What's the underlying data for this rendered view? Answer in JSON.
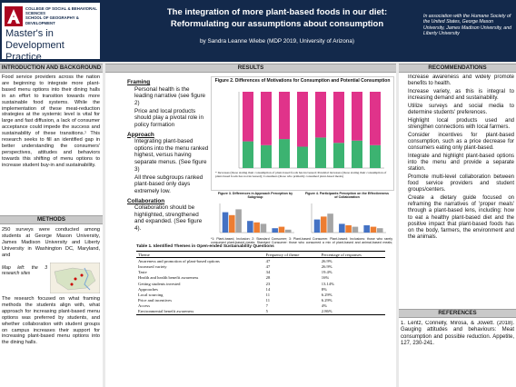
{
  "header": {
    "college": "COLLEGE OF SOCIAL & BEHAVIORAL SCIENCES",
    "school": "SCHOOL OF GEOGRAPHY & DEVELOPMENT",
    "program": "Master's in Development Practice",
    "title_1": "The integration of more plant-based foods in our diet:",
    "title_2": "Reformulating our assumptions about consumption",
    "author": "by Sandra Leanne Wiebe (MDP 2019, University of Arizona)",
    "affiliation": "In association with the Humane Society of the United States, George Mason University, James Madison University, and Liberty University"
  },
  "intro": {
    "heading": "INTRODUCTION AND BACKGROUND",
    "text": "Food service providers across the nation are beginning to integrate more plant-based menu options into their dining halls in an effort to transition towards more sustainable food systems. While the implementation of these meat-reduction strategies at the systemic level is vital for large and fast diffusion, a lack of consumer acceptance could impede the success and sustainability of these transitions.¹ This research seeks to fill an identified gap in better understanding the consumers' perspectives, attitudes and behaviors towards this shifting of menu options to increase student buy-in and sustainability."
  },
  "methods": {
    "heading": "METHODS",
    "text_1": "250 surveys were conducted among students at George Mason University, James Madison University and Liberty University in Washington DC, Maryland, and",
    "caption": "Map left: the 3 research sites",
    "text_2": "The research focused on what framing methods the students align with, what approach for increasing plant-based menu options was preferred by students, and whether collaboration with student groups on campus increases their support for increasing plant-based menu options into the dining halls."
  },
  "results": {
    "heading": "RESULTS",
    "framing_heading": "Framing",
    "framing": [
      "Personal health is the leading narrative (see figure 2)",
      "Price and local products should play a pivotal role in policy formation"
    ],
    "approach_heading": "Approach",
    "approach": [
      "Integrating plant-based options into the menu ranked highest, versus having separate menus. (See figure 3)",
      "All three subgroups ranked plant-based only days extremely low."
    ],
    "collaboration_heading": "Collaboration",
    "collaboration": [
      "Collaboration should be highlighted, strengthened and expanded. (See figure 4)."
    ],
    "note": "*1: Plant-based, Inclusion; 2: Standard Consumer; 3: Plant-based Consumer. Plant-based: Inclusions: those who rarely consumed plant-based meals; Standard Consumer: those who consumed a mix of plant-based and animal-based meals; Plant-based Consumer: those who primarily consumed plant-based meals."
  },
  "figure_2": {
    "type": "bar",
    "title": "Figure 2. Differences of Motivations for Consumption and Potential Consumption",
    "note": "* Increases (those stating their consumption of plant-based foods has increased; Potential increases (those stating their consumption of plant-based foods has not increased); Consumers (those who primarily consumed plant-based meals)",
    "categories": [
      null,
      null,
      null,
      null,
      null,
      null,
      null,
      null
    ],
    "ylim": [
      0,
      100
    ],
    "series": [
      {
        "name": null,
        "color": "#3cb371",
        "values": [
          35,
          30,
          38,
          28,
          40,
          33,
          36,
          30
        ]
      },
      {
        "name": null,
        "color": "#e0338a",
        "values": [
          65,
          70,
          62,
          72,
          60,
          67,
          64,
          70
        ]
      }
    ]
  },
  "figure_3": {
    "type": "bar",
    "title": "Figure 3. Differences in Approach Perception by Subgroup",
    "ylim": [
      0,
      100
    ],
    "categories": [
      null,
      null,
      null
    ],
    "series": [
      {
        "name": null,
        "color": "#4472c4",
        "values": [
          70,
          40,
          15
        ]
      },
      {
        "name": null,
        "color": "#ed7d31",
        "values": [
          60,
          35,
          20
        ]
      },
      {
        "name": null,
        "color": "#a5a5a5",
        "values": [
          80,
          30,
          10
        ]
      }
    ]
  },
  "figure_4": {
    "type": "bar",
    "title": "Figure 4. Participants Perception on the Effectiveness of Collaboration",
    "ylim": [
      0,
      100
    ],
    "categories": [
      null,
      null,
      null
    ],
    "series": [
      {
        "name": null,
        "color": "#4472c4",
        "values": [
          45,
          30,
          25
        ]
      },
      {
        "name": null,
        "color": "#ed7d31",
        "values": [
          55,
          25,
          20
        ]
      },
      {
        "name": null,
        "color": "#a5a5a5",
        "values": [
          65,
          20,
          15
        ]
      }
    ]
  },
  "table": {
    "title": "Table 1. Identified Themes in Open-ended Sustainability Questions",
    "columns": [
      "Theme",
      "Frequency of theme",
      "Percentage of responses"
    ],
    "rows": [
      [
        "Awareness and promotion of plant-based options",
        "47",
        "26.9%"
      ],
      [
        "Increased variety",
        "47",
        "26.9%"
      ],
      [
        "Taste",
        "34",
        "19.4%"
      ],
      [
        "Health and health benefit awareness",
        "28",
        "16%"
      ],
      [
        "Getting students invested",
        "23",
        "13.14%"
      ],
      [
        "Approaches",
        "14",
        "8%"
      ],
      [
        "Local sourcing",
        "11",
        "6.29%"
      ],
      [
        "Price and incentives",
        "11",
        "6.29%"
      ],
      [
        "Access",
        "7",
        "4%"
      ],
      [
        "Environmental benefit awareness",
        "5",
        "2.86%"
      ]
    ]
  },
  "recommendations": {
    "heading": "RECOMMENDATIONS",
    "items": [
      "Increase awareness and widely promote benefits to health.",
      "Increase variety, as this is integral to increasing demand and sustainability.",
      "Utilize surveys and social media to determine students' preferences.",
      "Highlight local products used and strengthen connections with local farmers.",
      "Consider incentives for plant-based consumption, such as a price decrease for consumers eating only plant-based.",
      "Integrate and highlight plant-based options into the menu and provide a separate station.",
      "Promote multi-level collaboration between food service providers and student groups/centers.",
      "Create a dietary guide focused on reframing the narratives of 'proper meals' through a plant-based lens, including: how to eat a healthy plant-based diet and the positive impact that plant-based foods has on the body, farmers, the environment and the animals."
    ]
  },
  "references": {
    "heading": "REFERENCES",
    "text": "1. Lentz, Connelly, Mirosa, & Jowett. (2018). Gauging attitudes and behaviours: Meat consumption and possible reduction. Appetite, 127, 230-241."
  }
}
